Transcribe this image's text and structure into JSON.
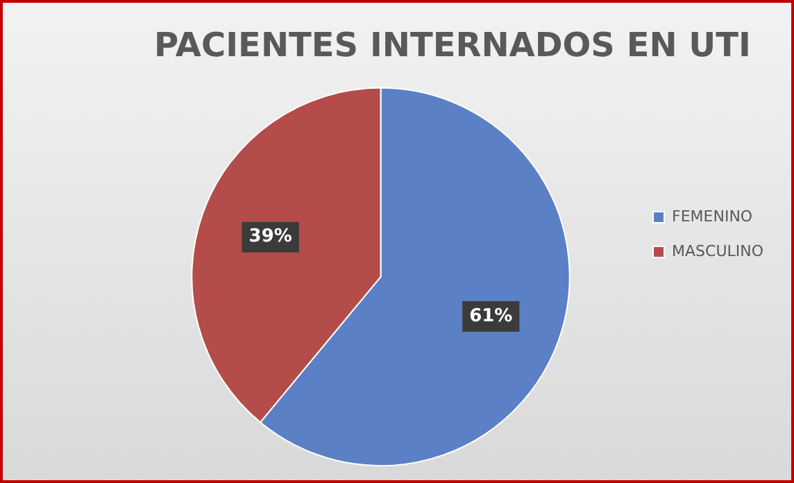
{
  "chart_data": {
    "type": "pie",
    "title": "PACIENTES INTERNADOS EN UTI",
    "categories": [
      "FEMENINO",
      "MASCULINO"
    ],
    "values": [
      61,
      39
    ],
    "colors": [
      "#5b80c6",
      "#b44c4a"
    ],
    "value_labels": [
      "61%",
      "39%"
    ],
    "legend": "right"
  }
}
